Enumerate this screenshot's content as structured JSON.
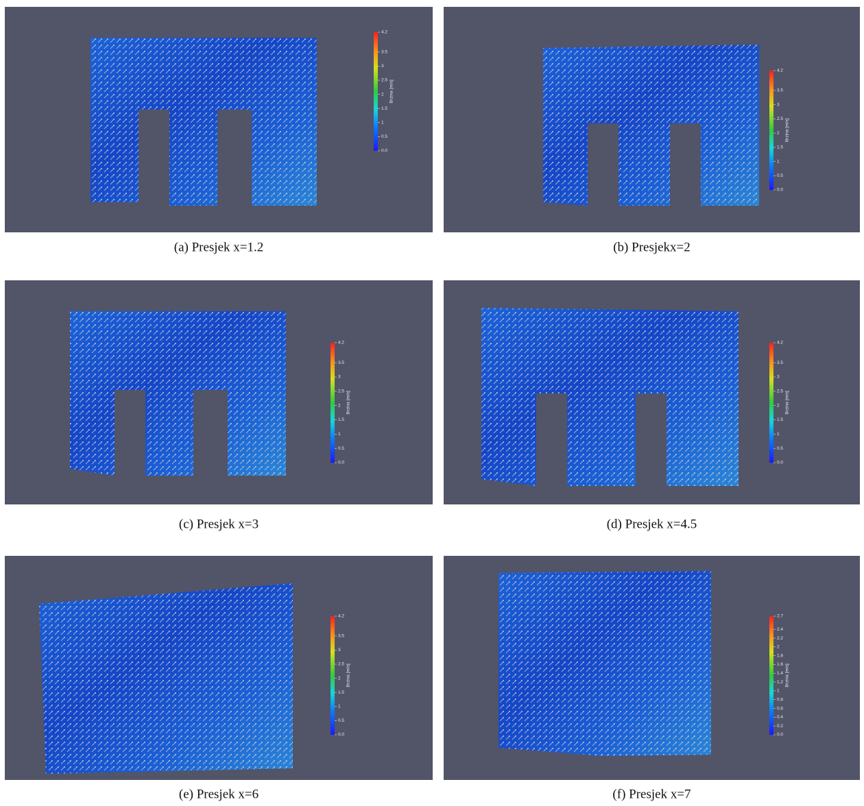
{
  "panels": [
    {
      "caption": "(a) Presjek x=1.2",
      "colorbar": {
        "title": "Brzina [m/s]",
        "ticks": [
          "4.2",
          "3.5",
          "3",
          "2.5",
          "2",
          "1.5",
          "1",
          "0.5",
          "0.0"
        ]
      }
    },
    {
      "caption": "(b) Presjekx=2",
      "colorbar": {
        "title": "Brzina [m/s]",
        "ticks": [
          "4.2",
          "3.5",
          "3",
          "2.5",
          "2",
          "1.5",
          "1",
          "0.5",
          "0.0"
        ]
      }
    },
    {
      "caption": "(c) Presjek x=3",
      "colorbar": {
        "title": "Brzina [m/s]",
        "ticks": [
          "4.2",
          "3.5",
          "3",
          "2.5",
          "2",
          "1.5",
          "1",
          "0.5",
          "0.0"
        ]
      }
    },
    {
      "caption": "(d) Presjek x=4.5",
      "colorbar": {
        "title": "Brzina [m/s]",
        "ticks": [
          "4.2",
          "3.5",
          "3",
          "2.5",
          "2",
          "1.5",
          "1",
          "0.5",
          "0.0"
        ]
      }
    },
    {
      "caption": "(e) Presjek x=6",
      "colorbar": {
        "title": "Brzina [m/s]",
        "ticks": [
          "4.2",
          "3.5",
          "3",
          "2.5",
          "2",
          "1.5",
          "1",
          "0.5",
          "0.0"
        ]
      }
    },
    {
      "caption": "(f) Presjek x=7",
      "colorbar": {
        "title": "Brzina [m/s]",
        "ticks": [
          "2.7",
          "2.4",
          "2.2",
          "2",
          "1.8",
          "1.6",
          "1.4",
          "1.2",
          "1",
          "0.8",
          "0.6",
          "0.4",
          "0.2",
          "0.0"
        ]
      }
    }
  ]
}
